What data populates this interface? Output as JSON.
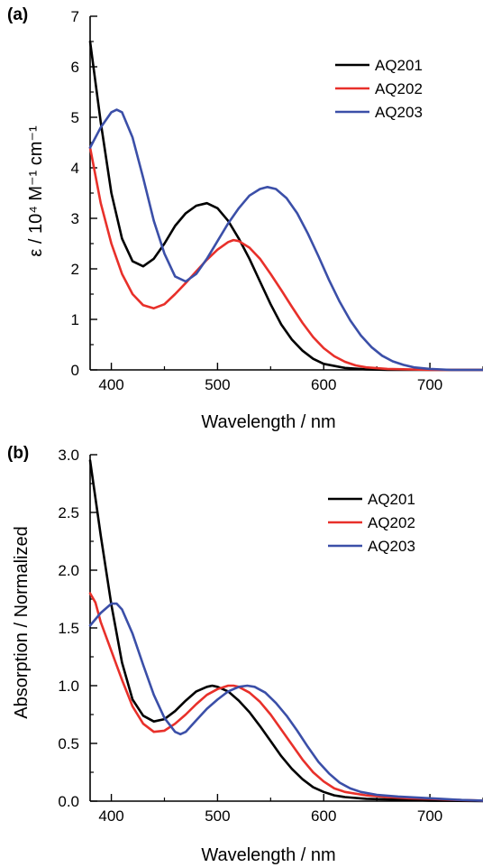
{
  "chart_data": [
    {
      "type": "line",
      "panel_label": "(a)",
      "xlabel": "Wavelength / nm",
      "ylabel": "ε / 10⁴ M⁻¹ cm⁻¹",
      "xlim": [
        380,
        750
      ],
      "ylim": [
        0,
        7
      ],
      "x_ticks": [
        400,
        500,
        600,
        700
      ],
      "y_ticks": [
        0,
        1,
        2,
        3,
        4,
        5,
        6,
        7
      ],
      "x_tick_labels": [
        "400",
        "500",
        "600",
        "700"
      ],
      "y_tick_labels": [
        "0",
        "1",
        "2",
        "3",
        "4",
        "5",
        "6",
        "7"
      ],
      "legend_position": "top-right",
      "series": [
        {
          "name": "AQ201",
          "color": "#000000",
          "points": [
            [
              380,
              6.5
            ],
            [
              390,
              4.9
            ],
            [
              400,
              3.5
            ],
            [
              410,
              2.6
            ],
            [
              420,
              2.15
            ],
            [
              430,
              2.05
            ],
            [
              440,
              2.2
            ],
            [
              450,
              2.5
            ],
            [
              460,
              2.85
            ],
            [
              470,
              3.1
            ],
            [
              480,
              3.25
            ],
            [
              490,
              3.3
            ],
            [
              500,
              3.2
            ],
            [
              510,
              2.95
            ],
            [
              520,
              2.6
            ],
            [
              530,
              2.2
            ],
            [
              540,
              1.75
            ],
            [
              550,
              1.3
            ],
            [
              560,
              0.9
            ],
            [
              570,
              0.6
            ],
            [
              580,
              0.38
            ],
            [
              590,
              0.22
            ],
            [
              600,
              0.12
            ],
            [
              620,
              0.04
            ],
            [
              640,
              0.01
            ],
            [
              660,
              0.0
            ],
            [
              750,
              0.0
            ]
          ]
        },
        {
          "name": "AQ202",
          "color": "#e8302a",
          "points": [
            [
              380,
              4.4
            ],
            [
              390,
              3.3
            ],
            [
              400,
              2.5
            ],
            [
              410,
              1.9
            ],
            [
              420,
              1.5
            ],
            [
              430,
              1.28
            ],
            [
              440,
              1.22
            ],
            [
              450,
              1.3
            ],
            [
              460,
              1.5
            ],
            [
              470,
              1.72
            ],
            [
              480,
              1.95
            ],
            [
              490,
              2.18
            ],
            [
              500,
              2.38
            ],
            [
              510,
              2.53
            ],
            [
              515,
              2.57
            ],
            [
              520,
              2.55
            ],
            [
              530,
              2.42
            ],
            [
              540,
              2.2
            ],
            [
              550,
              1.9
            ],
            [
              560,
              1.58
            ],
            [
              570,
              1.25
            ],
            [
              580,
              0.93
            ],
            [
              590,
              0.65
            ],
            [
              600,
              0.43
            ],
            [
              610,
              0.27
            ],
            [
              620,
              0.16
            ],
            [
              630,
              0.09
            ],
            [
              640,
              0.05
            ],
            [
              660,
              0.02
            ],
            [
              680,
              0.01
            ],
            [
              700,
              0.0
            ],
            [
              750,
              0.0
            ]
          ]
        },
        {
          "name": "AQ203",
          "color": "#3b4fa8",
          "points": [
            [
              380,
              4.4
            ],
            [
              390,
              4.8
            ],
            [
              400,
              5.1
            ],
            [
              405,
              5.15
            ],
            [
              410,
              5.1
            ],
            [
              420,
              4.6
            ],
            [
              430,
              3.8
            ],
            [
              440,
              2.95
            ],
            [
              450,
              2.3
            ],
            [
              460,
              1.85
            ],
            [
              470,
              1.75
            ],
            [
              480,
              1.9
            ],
            [
              490,
              2.2
            ],
            [
              500,
              2.55
            ],
            [
              510,
              2.9
            ],
            [
              520,
              3.2
            ],
            [
              530,
              3.45
            ],
            [
              540,
              3.58
            ],
            [
              547,
              3.62
            ],
            [
              555,
              3.58
            ],
            [
              565,
              3.4
            ],
            [
              575,
              3.1
            ],
            [
              585,
              2.7
            ],
            [
              595,
              2.25
            ],
            [
              605,
              1.78
            ],
            [
              615,
              1.35
            ],
            [
              625,
              0.98
            ],
            [
              635,
              0.68
            ],
            [
              645,
              0.45
            ],
            [
              655,
              0.28
            ],
            [
              665,
              0.17
            ],
            [
              675,
              0.1
            ],
            [
              685,
              0.05
            ],
            [
              700,
              0.02
            ],
            [
              720,
              0.0
            ],
            [
              750,
              0.0
            ]
          ]
        }
      ]
    },
    {
      "type": "line",
      "panel_label": "(b)",
      "xlabel": "Wavelength / nm",
      "ylabel": "Absorption / Normalized",
      "xlim": [
        380,
        750
      ],
      "ylim": [
        0,
        3.0
      ],
      "x_ticks": [
        400,
        500,
        600,
        700
      ],
      "y_ticks": [
        0.0,
        0.5,
        1.0,
        1.5,
        2.0,
        2.5,
        3.0
      ],
      "x_tick_labels": [
        "400",
        "500",
        "600",
        "700"
      ],
      "y_tick_labels": [
        "0.0",
        "0.5",
        "1.0",
        "1.5",
        "2.0",
        "2.5",
        "3.0"
      ],
      "legend_position": "top-right",
      "series": [
        {
          "name": "AQ201",
          "color": "#000000",
          "points": [
            [
              380,
              2.95
            ],
            [
              390,
              2.3
            ],
            [
              400,
              1.7
            ],
            [
              410,
              1.2
            ],
            [
              420,
              0.88
            ],
            [
              430,
              0.74
            ],
            [
              440,
              0.69
            ],
            [
              450,
              0.71
            ],
            [
              460,
              0.78
            ],
            [
              470,
              0.87
            ],
            [
              480,
              0.95
            ],
            [
              490,
              0.99
            ],
            [
              495,
              1.0
            ],
            [
              500,
              0.99
            ],
            [
              510,
              0.95
            ],
            [
              520,
              0.87
            ],
            [
              530,
              0.77
            ],
            [
              540,
              0.65
            ],
            [
              550,
              0.52
            ],
            [
              560,
              0.39
            ],
            [
              570,
              0.28
            ],
            [
              580,
              0.19
            ],
            [
              590,
              0.12
            ],
            [
              600,
              0.08
            ],
            [
              610,
              0.05
            ],
            [
              620,
              0.035
            ],
            [
              640,
              0.02
            ],
            [
              660,
              0.015
            ],
            [
              680,
              0.01
            ],
            [
              700,
              0.005
            ],
            [
              750,
              0.0
            ]
          ]
        },
        {
          "name": "AQ202",
          "color": "#e8302a",
          "points": [
            [
              380,
              1.8
            ],
            [
              385,
              1.72
            ],
            [
              390,
              1.55
            ],
            [
              400,
              1.3
            ],
            [
              410,
              1.05
            ],
            [
              420,
              0.82
            ],
            [
              430,
              0.67
            ],
            [
              440,
              0.6
            ],
            [
              450,
              0.61
            ],
            [
              460,
              0.67
            ],
            [
              470,
              0.75
            ],
            [
              480,
              0.84
            ],
            [
              490,
              0.92
            ],
            [
              500,
              0.97
            ],
            [
              510,
              1.0
            ],
            [
              515,
              1.0
            ],
            [
              520,
              0.99
            ],
            [
              530,
              0.94
            ],
            [
              540,
              0.86
            ],
            [
              550,
              0.75
            ],
            [
              560,
              0.62
            ],
            [
              570,
              0.49
            ],
            [
              580,
              0.36
            ],
            [
              590,
              0.25
            ],
            [
              600,
              0.17
            ],
            [
              610,
              0.11
            ],
            [
              620,
              0.08
            ],
            [
              640,
              0.05
            ],
            [
              660,
              0.035
            ],
            [
              680,
              0.025
            ],
            [
              700,
              0.02
            ],
            [
              720,
              0.012
            ],
            [
              750,
              0.005
            ]
          ]
        },
        {
          "name": "AQ203",
          "color": "#3b4fa8",
          "points": [
            [
              380,
              1.52
            ],
            [
              390,
              1.63
            ],
            [
              400,
              1.71
            ],
            [
              405,
              1.71
            ],
            [
              410,
              1.66
            ],
            [
              420,
              1.45
            ],
            [
              430,
              1.18
            ],
            [
              440,
              0.92
            ],
            [
              450,
              0.72
            ],
            [
              460,
              0.6
            ],
            [
              465,
              0.58
            ],
            [
              470,
              0.6
            ],
            [
              480,
              0.7
            ],
            [
              490,
              0.8
            ],
            [
              500,
              0.88
            ],
            [
              510,
              0.95
            ],
            [
              520,
              0.99
            ],
            [
              528,
              1.0
            ],
            [
              535,
              0.99
            ],
            [
              545,
              0.94
            ],
            [
              555,
              0.85
            ],
            [
              565,
              0.74
            ],
            [
              575,
              0.61
            ],
            [
              585,
              0.47
            ],
            [
              595,
              0.34
            ],
            [
              605,
              0.24
            ],
            [
              615,
              0.16
            ],
            [
              625,
              0.11
            ],
            [
              635,
              0.08
            ],
            [
              650,
              0.055
            ],
            [
              670,
              0.04
            ],
            [
              690,
              0.03
            ],
            [
              710,
              0.02
            ],
            [
              730,
              0.01
            ],
            [
              750,
              0.005
            ]
          ]
        }
      ]
    }
  ]
}
